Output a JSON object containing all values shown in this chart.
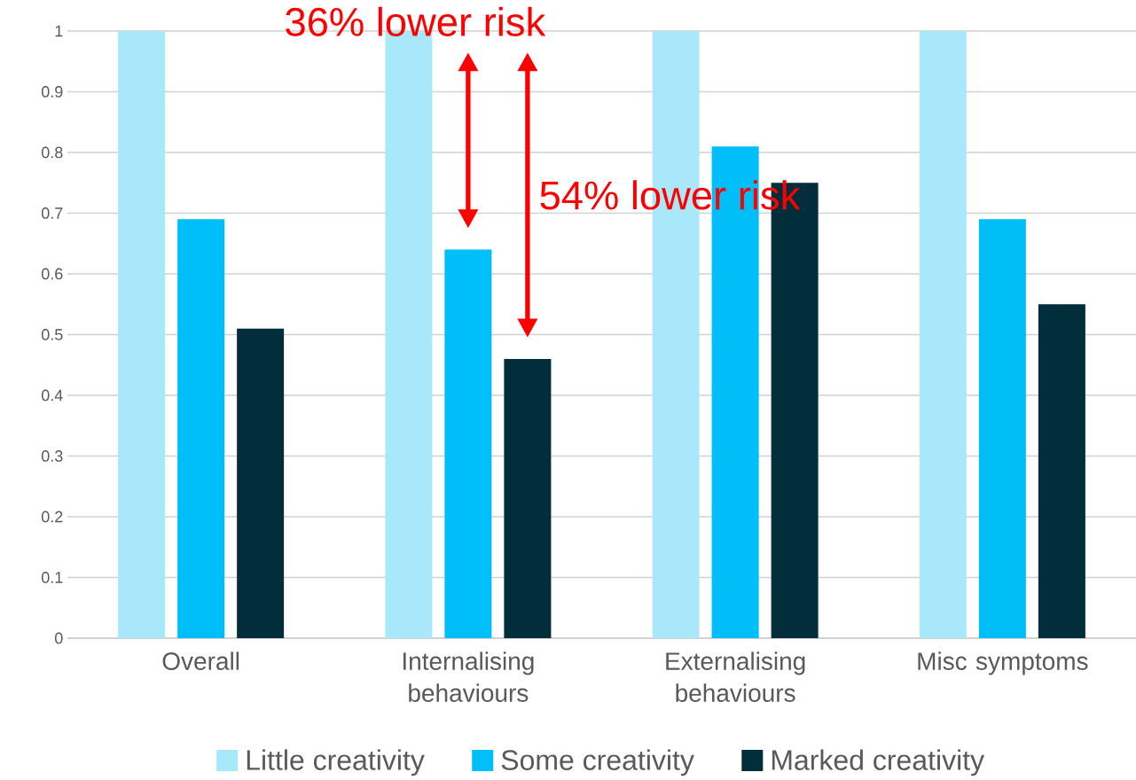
{
  "chart_data": {
    "type": "bar",
    "categories": [
      "Overall",
      "Internalising behaviours",
      "Externalising behaviours",
      "Misc symptoms"
    ],
    "series": [
      {
        "name": "Little creativity",
        "color": "#a9e8fb",
        "values": [
          1,
          1,
          1,
          1
        ]
      },
      {
        "name": "Some creativity",
        "color": "#00bff8",
        "values": [
          0.69,
          0.64,
          0.81,
          0.69
        ]
      },
      {
        "name": "Marked creativity",
        "color": "#022d3b",
        "values": [
          0.51,
          0.46,
          0.75,
          0.55
        ]
      }
    ],
    "ylim": [
      0,
      1
    ],
    "yticks": [
      0,
      0.1,
      0.2,
      0.3,
      0.4,
      0.5,
      0.6,
      0.7,
      0.8,
      0.9,
      1
    ],
    "grid": "y",
    "legend": "bottom",
    "annotations": [
      "36% lower risk",
      "54% lower risk"
    ]
  }
}
